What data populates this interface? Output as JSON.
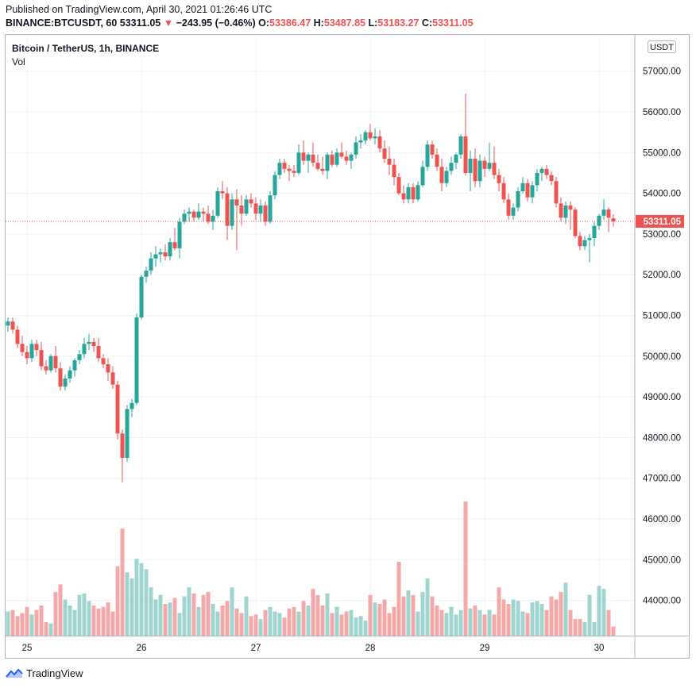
{
  "header": {
    "published": "Published on TradingView.com, April 30, 2021 01:26:46 UTC",
    "symbol_line": "BINANCE:BTCUSDT, 60",
    "last": "53311.05",
    "change_arrow": "▼",
    "change": "−243.95 (−0.46%)",
    "o_label": "O:",
    "o_value": "53386.47",
    "h_label": "H:",
    "h_value": "53487.85",
    "l_label": "L:",
    "l_value": "53183.27",
    "c_label": "C:",
    "c_value": "53311.05"
  },
  "legend": {
    "title": "Bitcoin / TetherUS, 1h, BINANCE",
    "vol": "Vol"
  },
  "currency_badge": "USDT",
  "footer": {
    "brand": "TradingView"
  },
  "colors": {
    "up": "#26a69a",
    "down": "#ef5350",
    "vol_up": "#9fd4cf",
    "vol_down": "#f3a9a8",
    "grid": "#f0f3fa",
    "price_line": "#ef5350"
  },
  "chart_data": {
    "type": "candlestick",
    "ylim": [
      43000,
      57400
    ],
    "y_ticks": [
      44000,
      45000,
      46000,
      47000,
      48000,
      49000,
      50000,
      51000,
      52000,
      53000,
      54000,
      55000,
      56000,
      57000
    ],
    "y_tick_labels": [
      "44000.00",
      "45000.00",
      "46000.00",
      "47000.00",
      "48000.00",
      "49000.00",
      "50000.00",
      "51000.00",
      "52000.00",
      "53000.00",
      "54000.00",
      "55000.00",
      "56000.00",
      "57000.00"
    ],
    "x_tick_labels": [
      "25",
      "26",
      "27",
      "28",
      "29",
      "30"
    ],
    "x_tick_hours": [
      4,
      28,
      52,
      76,
      100,
      124
    ],
    "current_price": 53311.05,
    "current_price_label": "53311.05",
    "candles": [
      [
        50750,
        50950,
        50600,
        50850,
        0.16
      ],
      [
        50850,
        50950,
        50550,
        50650,
        0.17
      ],
      [
        50650,
        50750,
        50200,
        50300,
        0.13
      ],
      [
        50300,
        50500,
        50000,
        50100,
        0.15
      ],
      [
        50100,
        50250,
        49800,
        49950,
        0.19
      ],
      [
        49950,
        50400,
        49850,
        50300,
        0.14
      ],
      [
        50300,
        50400,
        50000,
        50150,
        0.17
      ],
      [
        50150,
        50350,
        49650,
        49750,
        0.2
      ],
      [
        49750,
        49900,
        49550,
        49650,
        0.09
      ],
      [
        49650,
        50050,
        49600,
        50000,
        0.08
      ],
      [
        50000,
        50250,
        49600,
        49700,
        0.29
      ],
      [
        49700,
        49850,
        49150,
        49250,
        0.34
      ],
      [
        49250,
        49550,
        49150,
        49450,
        0.24
      ],
      [
        49450,
        49750,
        49350,
        49650,
        0.2
      ],
      [
        49650,
        49950,
        49500,
        49900,
        0.17
      ],
      [
        49900,
        50150,
        49800,
        50050,
        0.27
      ],
      [
        50050,
        50450,
        49950,
        50300,
        0.28
      ],
      [
        50300,
        50550,
        50150,
        50350,
        0.23
      ],
      [
        50350,
        50450,
        50100,
        50250,
        0.2
      ],
      [
        50250,
        50450,
        49850,
        49950,
        0.18
      ],
      [
        49950,
        50050,
        49700,
        49800,
        0.19
      ],
      [
        49800,
        49950,
        49400,
        49600,
        0.22
      ],
      [
        49600,
        49750,
        49200,
        49300,
        0.16
      ],
      [
        49300,
        49400,
        47950,
        48100,
        0.46
      ],
      [
        48100,
        48200,
        46900,
        47500,
        0.71
      ],
      [
        47500,
        48800,
        47400,
        48700,
        0.42
      ],
      [
        48700,
        48950,
        48500,
        48850,
        0.38
      ],
      [
        48850,
        51050,
        48800,
        50950,
        0.51
      ],
      [
        50950,
        52000,
        50900,
        51950,
        0.48
      ],
      [
        51950,
        52200,
        51800,
        52100,
        0.44
      ],
      [
        52100,
        52550,
        52000,
        52400,
        0.32
      ],
      [
        52400,
        52700,
        52200,
        52500,
        0.24
      ],
      [
        52500,
        52650,
        52300,
        52550,
        0.27
      ],
      [
        52550,
        52750,
        52350,
        52450,
        0.21
      ],
      [
        52450,
        52900,
        52350,
        52800,
        0.22
      ],
      [
        52800,
        53150,
        52600,
        52650,
        0.25
      ],
      [
        52650,
        53400,
        52400,
        53300,
        0.15
      ],
      [
        53300,
        53600,
        53250,
        53500,
        0.26
      ],
      [
        53500,
        53650,
        53300,
        53550,
        0.32
      ],
      [
        53550,
        53600,
        53300,
        53400,
        0.28
      ],
      [
        53400,
        53750,
        53350,
        53550,
        0.19
      ],
      [
        53550,
        53650,
        53300,
        53500,
        0.27
      ],
      [
        53500,
        53700,
        53250,
        53300,
        0.29
      ],
      [
        53300,
        53600,
        53100,
        53450,
        0.21
      ],
      [
        53450,
        54150,
        53400,
        54050,
        0.16
      ],
      [
        54050,
        54300,
        53850,
        54000,
        0.2
      ],
      [
        54000,
        54150,
        52850,
        53200,
        0.23
      ],
      [
        53200,
        54000,
        53100,
        53850,
        0.32
      ],
      [
        53850,
        54100,
        52600,
        53700,
        0.18
      ],
      [
        53700,
        53950,
        53200,
        53500,
        0.15
      ],
      [
        53500,
        53950,
        53450,
        53850,
        0.26
      ],
      [
        53850,
        54000,
        53650,
        53750,
        0.13
      ],
      [
        53750,
        53900,
        53350,
        53500,
        0.14
      ],
      [
        53500,
        53850,
        53300,
        53700,
        0.11
      ],
      [
        53700,
        53800,
        53200,
        53300,
        0.17
      ],
      [
        53300,
        54050,
        53250,
        53950,
        0.19
      ],
      [
        53950,
        54550,
        53850,
        54450,
        0.16
      ],
      [
        54450,
        54850,
        54350,
        54750,
        0.15
      ],
      [
        54750,
        54850,
        54500,
        54600,
        0.12
      ],
      [
        54600,
        54700,
        54300,
        54550,
        0.18
      ],
      [
        54550,
        54700,
        54400,
        54500,
        0.19
      ],
      [
        54500,
        55200,
        54450,
        55000,
        0.16
      ],
      [
        55000,
        55300,
        54700,
        54800,
        0.23
      ],
      [
        54800,
        55000,
        54500,
        54950,
        0.2
      ],
      [
        54950,
        55250,
        54650,
        54750,
        0.31
      ],
      [
        54750,
        54950,
        54550,
        54600,
        0.27
      ],
      [
        54600,
        54900,
        54450,
        54550,
        0.2
      ],
      [
        54550,
        55000,
        54350,
        54950,
        0.28
      ],
      [
        54950,
        55050,
        54650,
        54700,
        0.15
      ],
      [
        54700,
        55100,
        54650,
        55000,
        0.19
      ],
      [
        55000,
        55250,
        54850,
        54900,
        0.14
      ],
      [
        54900,
        55050,
        54700,
        54800,
        0.16
      ],
      [
        54800,
        55000,
        54600,
        54950,
        0.17
      ],
      [
        54950,
        55400,
        54850,
        55250,
        0.12
      ],
      [
        55250,
        55450,
        55100,
        55300,
        0.13
      ],
      [
        55300,
        55550,
        55200,
        55500,
        0.1
      ],
      [
        55500,
        55700,
        55300,
        55350,
        0.27
      ],
      [
        55350,
        55600,
        55200,
        55400,
        0.22
      ],
      [
        55400,
        55550,
        55000,
        55100,
        0.21
      ],
      [
        55100,
        55300,
        54750,
        54850,
        0.24
      ],
      [
        54850,
        55150,
        54450,
        54700,
        0.15
      ],
      [
        54700,
        54850,
        54200,
        54400,
        0.19
      ],
      [
        54400,
        54500,
        53950,
        54000,
        0.49
      ],
      [
        54000,
        54200,
        53750,
        53850,
        0.26
      ],
      [
        53850,
        54250,
        53750,
        54150,
        0.3
      ],
      [
        54150,
        54250,
        53750,
        53850,
        0.27
      ],
      [
        53850,
        54300,
        53800,
        54200,
        0.16
      ],
      [
        54200,
        54800,
        54150,
        54650,
        0.29
      ],
      [
        54650,
        55300,
        54550,
        55200,
        0.38
      ],
      [
        55200,
        55300,
        54850,
        54950,
        0.26
      ],
      [
        54950,
        55100,
        54550,
        54650,
        0.2
      ],
      [
        54650,
        54850,
        54050,
        54250,
        0.17
      ],
      [
        54250,
        54650,
        54150,
        54550,
        0.15
      ],
      [
        54550,
        54900,
        54450,
        54750,
        0.19
      ],
      [
        54750,
        55000,
        54600,
        54950,
        0.14
      ],
      [
        54950,
        55450,
        54850,
        55400,
        0.17
      ],
      [
        55400,
        56450,
        54450,
        54500,
        0.89
      ],
      [
        54500,
        55050,
        54050,
        54850,
        0.18
      ],
      [
        54850,
        55100,
        54150,
        54300,
        0.2
      ],
      [
        54300,
        54950,
        54150,
        54800,
        0.17
      ],
      [
        54800,
        54900,
        54400,
        54600,
        0.14
      ],
      [
        54600,
        55250,
        54550,
        54750,
        0.17
      ],
      [
        54750,
        55150,
        54350,
        54450,
        0.14
      ],
      [
        54450,
        54600,
        54050,
        54250,
        0.32
      ],
      [
        54250,
        54400,
        53750,
        53850,
        0.24
      ],
      [
        53850,
        54000,
        53350,
        53450,
        0.21
      ],
      [
        53450,
        53750,
        53350,
        53650,
        0.24
      ],
      [
        53650,
        54150,
        53550,
        54050,
        0.23
      ],
      [
        54050,
        54400,
        54000,
        54250,
        0.16
      ],
      [
        54250,
        54350,
        53800,
        53900,
        0.15
      ],
      [
        53900,
        54300,
        53750,
        54200,
        0.22
      ],
      [
        54200,
        54600,
        54050,
        54500,
        0.23
      ],
      [
        54500,
        54650,
        54300,
        54600,
        0.21
      ],
      [
        54600,
        54700,
        54350,
        54450,
        0.17
      ],
      [
        54450,
        54550,
        54200,
        54300,
        0.26
      ],
      [
        54300,
        54400,
        53650,
        53750,
        0.24
      ],
      [
        53750,
        53900,
        53300,
        53400,
        0.29
      ],
      [
        53400,
        53800,
        53250,
        53700,
        0.35
      ],
      [
        53700,
        53800,
        53100,
        53600,
        0.17
      ],
      [
        53600,
        53650,
        52900,
        52950,
        0.11
      ],
      [
        52950,
        53050,
        52600,
        52700,
        0.11
      ],
      [
        52700,
        52950,
        52600,
        52850,
        0.09
      ],
      [
        52850,
        53000,
        52300,
        52900,
        0.27
      ],
      [
        52900,
        53300,
        52700,
        53200,
        0.09
      ],
      [
        53200,
        53500,
        53100,
        53450,
        0.33
      ],
      [
        53450,
        53850,
        53350,
        53600,
        0.31
      ],
      [
        53600,
        53650,
        53050,
        53400,
        0.17
      ],
      [
        53386.47,
        53487.85,
        53183.27,
        53311.05,
        0.06
      ]
    ]
  }
}
